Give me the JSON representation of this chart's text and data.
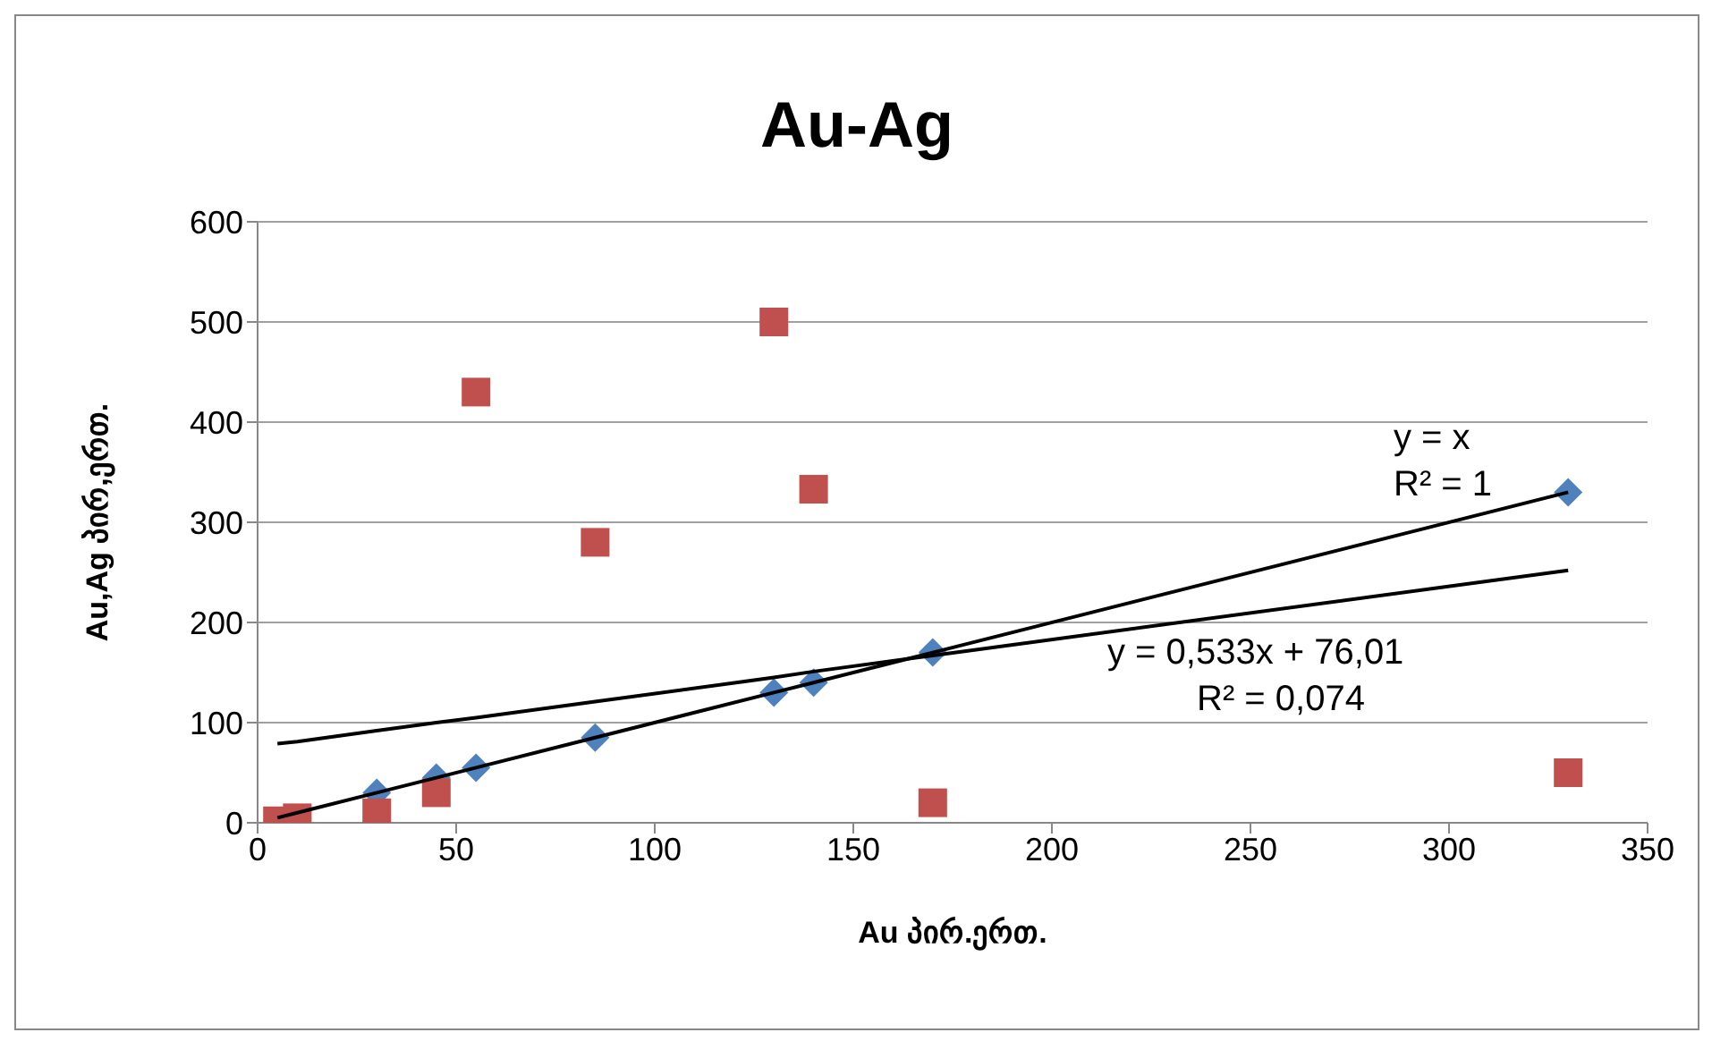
{
  "chart_data": {
    "type": "scatter",
    "title": "Au-Ag",
    "xlabel": "Au პირ.ერთ.",
    "ylabel": "Au,Ag პირ,ერთ.",
    "x": [
      5,
      10,
      30,
      45,
      55,
      85,
      130,
      140,
      170,
      330
    ],
    "series": [
      {
        "color": "#4f81bd",
        "marker": "diamond",
        "values": [
          null,
          null,
          30,
          45,
          55,
          85,
          130,
          140,
          170,
          330
        ]
      },
      {
        "color": "#c0504d",
        "marker": "square",
        "values": [
          2,
          5,
          10,
          30,
          430,
          280,
          500,
          333,
          20,
          50
        ]
      },
      {
        "type": "line",
        "color": "#000000",
        "marker": "none",
        "values": [
          5,
          10,
          30,
          45,
          55,
          85,
          130,
          140,
          170,
          330
        ]
      },
      {
        "type": "line",
        "color": "#000000",
        "marker": "none",
        "values": [
          79,
          81,
          92,
          100,
          105,
          121,
          145,
          151,
          167,
          252
        ]
      }
    ],
    "annotations": [
      "y = x",
      "R² = 1",
      "y = 0,533x + 76,01",
      "R² = 0,074"
    ],
    "xlim": [
      0,
      350
    ],
    "xticks": [
      0,
      50,
      100,
      150,
      200,
      250,
      300,
      350
    ],
    "ylim": [
      0,
      600
    ],
    "yticks": [
      0,
      100,
      200,
      300,
      400,
      500,
      600
    ],
    "grid": "y"
  }
}
